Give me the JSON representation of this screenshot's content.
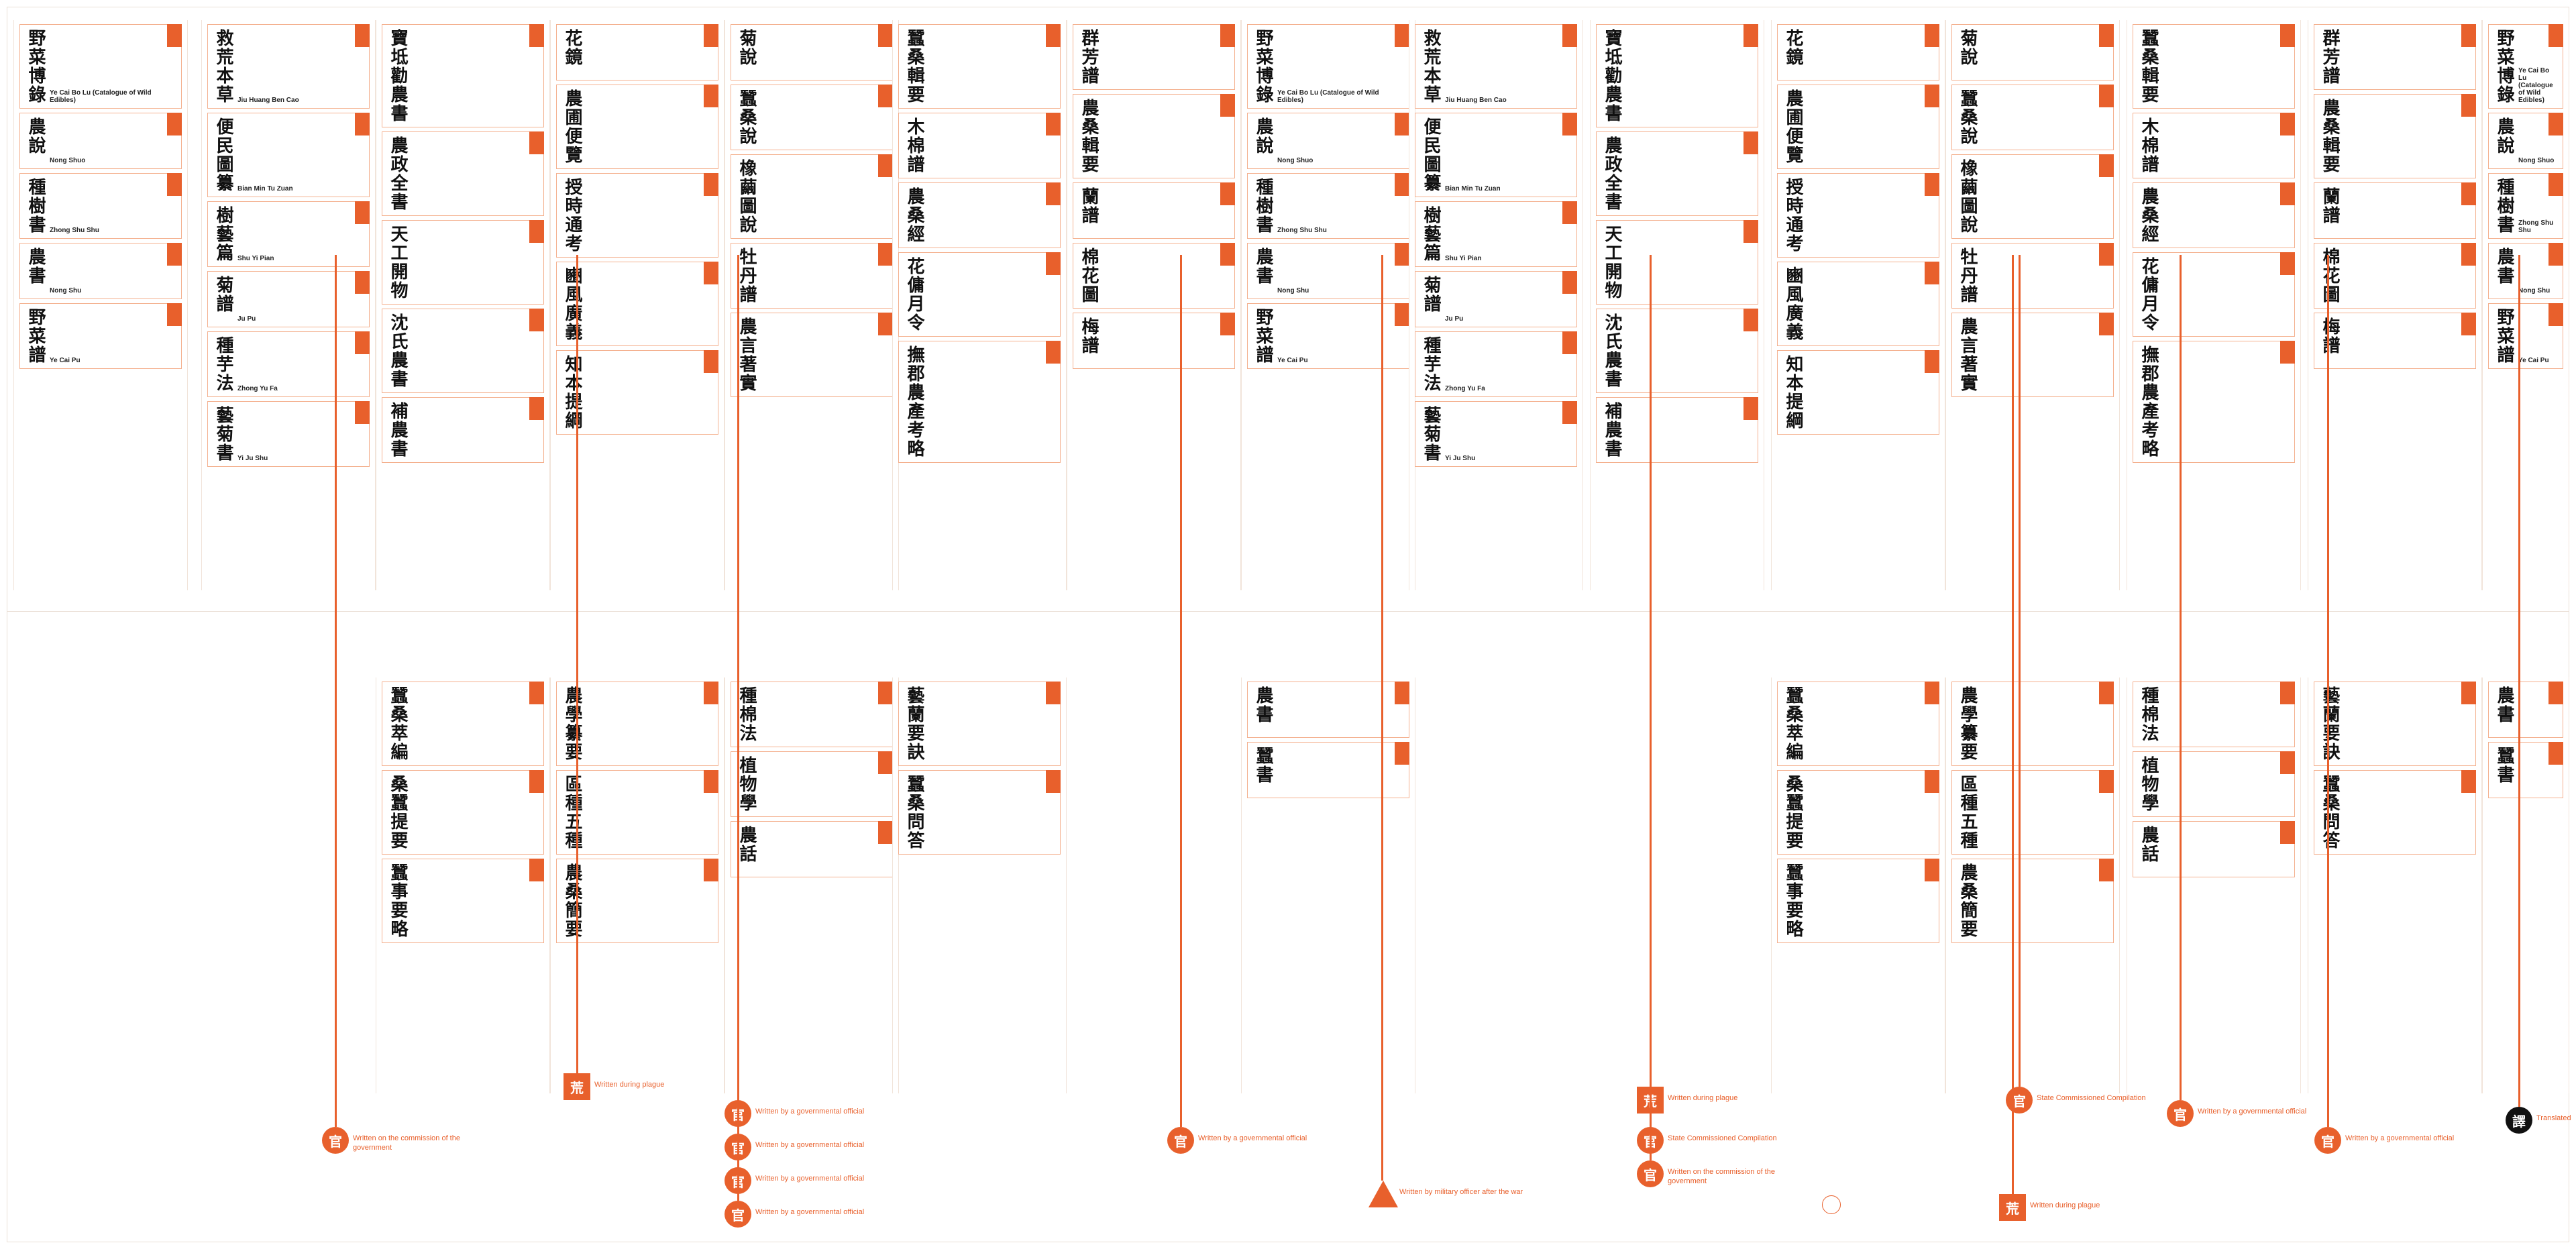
{
  "columns": [
    {
      "id": "c1",
      "header": "",
      "entries": [
        {
          "cn": "野菜博錄",
          "tag": "",
          "en": "Ye Cai Bo Lu (Catalogue of Wild Edibles)",
          "author": ""
        },
        {
          "cn": "農說",
          "tag": "",
          "en": "Nong Shuo",
          "author": ""
        },
        {
          "cn": "種樹書",
          "tag": "",
          "en": "Zhong Shu Shu",
          "author": ""
        },
        {
          "cn": "農書",
          "tag": "",
          "en": "Nong Shu",
          "author": ""
        },
        {
          "cn": "野菜譜",
          "tag": "",
          "en": "Ye Cai Pu",
          "author": ""
        }
      ]
    },
    {
      "id": "c2",
      "header": "",
      "entries": [
        {
          "cn": "救荒本草",
          "tag": "",
          "en": "Jiu Huang Ben Cao",
          "author": ""
        },
        {
          "cn": "便民圖纂",
          "tag": "",
          "en": "Bian Min Tu Zuan",
          "author": ""
        },
        {
          "cn": "樹藝篇",
          "tag": "",
          "en": "Shu Yi Pian",
          "author": ""
        },
        {
          "cn": "菊譜",
          "tag": "",
          "en": "Ju Pu",
          "author": ""
        },
        {
          "cn": "種芋法",
          "tag": "",
          "en": "Zhong Yu Fa",
          "author": ""
        },
        {
          "cn": "藝菊書",
          "tag": "",
          "en": "Yi Ju Shu",
          "author": ""
        }
      ]
    },
    {
      "id": "c3",
      "header": "",
      "entries": [
        {
          "cn": "寶坻勸農書",
          "tag": "",
          "en": "",
          "author": ""
        },
        {
          "cn": "農政全書",
          "tag": "",
          "en": "",
          "author": ""
        },
        {
          "cn": "天工開物",
          "tag": "",
          "en": "",
          "author": ""
        },
        {
          "cn": "沈氏農書",
          "tag": "",
          "en": "",
          "author": ""
        },
        {
          "cn": "補農書",
          "tag": "",
          "en": "",
          "author": ""
        }
      ]
    },
    {
      "id": "c4",
      "header": "",
      "entries": [
        {
          "cn": "花鏡",
          "tag": "",
          "en": "",
          "author": ""
        },
        {
          "cn": "農圃便覽",
          "tag": "",
          "en": "",
          "author": ""
        },
        {
          "cn": "授時通考",
          "tag": "",
          "en": "",
          "author": ""
        },
        {
          "cn": "豳風廣義",
          "tag": "",
          "en": "",
          "author": ""
        },
        {
          "cn": "知本提綱",
          "tag": "",
          "en": "",
          "author": ""
        }
      ]
    },
    {
      "id": "c5",
      "header": "",
      "entries": [
        {
          "cn": "菊說",
          "tag": "",
          "en": "",
          "author": ""
        },
        {
          "cn": "蠶桑說",
          "tag": "",
          "en": "",
          "author": ""
        },
        {
          "cn": "橡繭圖說",
          "tag": "",
          "en": "",
          "author": ""
        },
        {
          "cn": "牡丹譜",
          "tag": "",
          "en": "",
          "author": ""
        },
        {
          "cn": "農言著實",
          "tag": "",
          "en": "",
          "author": ""
        }
      ]
    },
    {
      "id": "c6",
      "header": "",
      "entries": [
        {
          "cn": "蠶桑輯要",
          "tag": "",
          "en": "",
          "author": ""
        },
        {
          "cn": "木棉譜",
          "tag": "",
          "en": "",
          "author": ""
        },
        {
          "cn": "農桑經",
          "tag": "",
          "en": "",
          "author": ""
        },
        {
          "cn": "花傭月令",
          "tag": "",
          "en": "",
          "author": ""
        },
        {
          "cn": "撫郡農產考略",
          "tag": "",
          "en": "",
          "author": ""
        }
      ]
    },
    {
      "id": "c7",
      "header": "",
      "entries": [
        {
          "cn": "群芳譜",
          "tag": "",
          "en": "",
          "author": ""
        },
        {
          "cn": "農桑輯要",
          "tag": "",
          "en": "",
          "author": ""
        },
        {
          "cn": "蘭譜",
          "tag": "",
          "en": "",
          "author": ""
        },
        {
          "cn": "棉花圖",
          "tag": "",
          "en": "",
          "author": ""
        },
        {
          "cn": "梅譜",
          "tag": "",
          "en": "",
          "author": ""
        }
      ]
    }
  ],
  "bottom_columns": [
    {
      "id": "b1",
      "entries": [
        {
          "cn": "蠶桑萃編",
          "en": "",
          "author": ""
        },
        {
          "cn": "桑蠶提要",
          "en": "",
          "author": ""
        },
        {
          "cn": "蠶事要略",
          "en": "",
          "author": ""
        }
      ]
    },
    {
      "id": "b2",
      "entries": [
        {
          "cn": "農學纂要",
          "en": "",
          "author": ""
        },
        {
          "cn": "區種五種",
          "en": "",
          "author": ""
        },
        {
          "cn": "農桑簡要",
          "en": "",
          "author": ""
        }
      ]
    },
    {
      "id": "b3",
      "entries": [
        {
          "cn": "種棉法",
          "en": "",
          "author": ""
        },
        {
          "cn": "植物學",
          "en": "",
          "author": ""
        },
        {
          "cn": "農話",
          "en": "",
          "author": ""
        }
      ]
    },
    {
      "id": "b4",
      "entries": [
        {
          "cn": "藝蘭要訣",
          "en": "",
          "author": ""
        },
        {
          "cn": "蠶桑問答",
          "en": "",
          "author": ""
        }
      ]
    },
    {
      "id": "b5",
      "entries": [
        {
          "cn": "農書",
          "en": "",
          "author": ""
        },
        {
          "cn": "蠶書",
          "en": "",
          "author": ""
        }
      ]
    }
  ],
  "nodes": [
    {
      "glyph": "官",
      "note": "Written on the commission of the government"
    },
    {
      "glyph": "荒",
      "note": "Written during plague"
    },
    {
      "glyph": "官",
      "note": "Written by a governmental official"
    },
    {
      "glyph": "官",
      "note": "Written by a governmental official"
    },
    {
      "glyph": "官",
      "note": "Written by a governmental official"
    },
    {
      "glyph": "官",
      "note": "Written by a governmental official"
    },
    {
      "glyph": "荒",
      "note": "Written during plague"
    },
    {
      "glyph": "官",
      "note": "State Commissioned Compilation"
    },
    {
      "glyph": "官",
      "note": "Written on the commission of the government"
    },
    {
      "glyph": "",
      "note": "Written by military officer after the war"
    },
    {
      "glyph": "官",
      "note": "Written by a governmental official"
    },
    {
      "glyph": "官",
      "note": "State Commissioned Compilation"
    },
    {
      "glyph": "荒",
      "note": "Written during plague"
    },
    {
      "glyph": "官",
      "note": "Written by a governmental official"
    },
    {
      "glyph": "官",
      "note": "Written by a governmental official"
    },
    {
      "glyph": "譯",
      "note": "Translated"
    }
  ]
}
